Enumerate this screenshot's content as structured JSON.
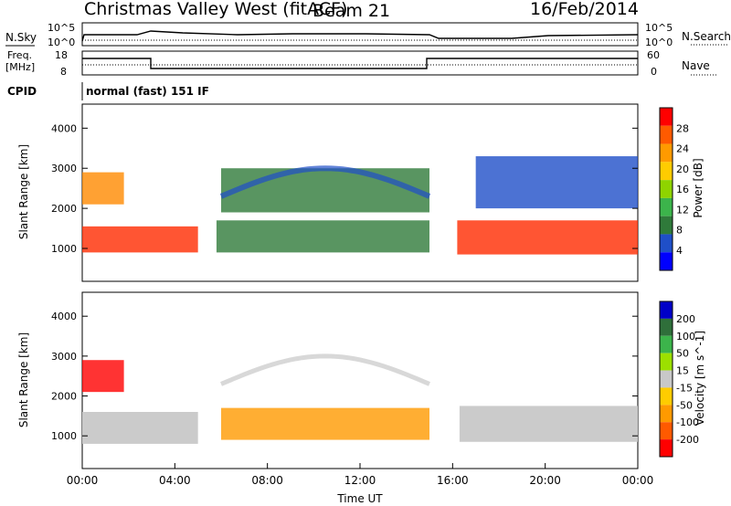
{
  "header": {
    "title": "Christmas Valley West (fitACF)",
    "beam": "Beam 21",
    "date": "16/Feb/2014"
  },
  "noise_panel": {
    "left_label": "N.Sky",
    "right_label": "N.Search",
    "left_ticks": [
      "10^5",
      "10^0"
    ],
    "right_ticks": [
      "10^5",
      "10^0"
    ]
  },
  "freq_panel": {
    "left_label_1": "Freq.",
    "left_label_2": "[MHz]",
    "right_label": "Nave",
    "left_ticks": [
      "18",
      "8"
    ],
    "right_ticks": [
      "60",
      "0"
    ]
  },
  "cpid": {
    "label": "CPID",
    "text": "normal (fast) 151 IF"
  },
  "chart_data": [
    {
      "type": "heatmap",
      "panel": "power",
      "ylabel": "Slant Range [km]",
      "y_ticks": [
        1000,
        2000,
        3000,
        4000
      ],
      "ylim": [
        180,
        4600
      ],
      "xlim": [
        0,
        24
      ],
      "colorbar_label": "Power [dB]",
      "colorbar_ticks": [
        "28",
        "24",
        "20",
        "16",
        "12",
        "8",
        "4"
      ],
      "colorbar_colors": [
        "#ff0000",
        "#ff5a00",
        "#ff9a00",
        "#ffcc00",
        "#8fd400",
        "#3cb44b",
        "#2f7a3a",
        "#1f4fc8",
        "#0000ff"
      ],
      "features": [
        {
          "name": "near band",
          "x": [
            0.0,
            5.0
          ],
          "y": [
            900,
            1550
          ],
          "level": 0.9
        },
        {
          "name": "near band late",
          "x": [
            16.2,
            24.0
          ],
          "y": [
            850,
            1700
          ],
          "level": 0.95
        },
        {
          "name": "early far",
          "x": [
            0.0,
            1.8
          ],
          "y": [
            2100,
            2900
          ],
          "level": 0.8
        },
        {
          "name": "arc",
          "x": [
            6.0,
            15.0
          ],
          "y": [
            1900,
            3000
          ],
          "level": 0.25
        },
        {
          "name": "mid region",
          "x": [
            5.8,
            15.0
          ],
          "y": [
            900,
            1700
          ],
          "level": 0.3
        },
        {
          "name": "late far",
          "x": [
            17.0,
            24.0
          ],
          "y": [
            2000,
            3300
          ],
          "level": 0.2
        }
      ]
    },
    {
      "type": "heatmap",
      "panel": "velocity",
      "ylabel": "Slant Range [km]",
      "y_ticks": [
        1000,
        2000,
        3000,
        4000
      ],
      "ylim": [
        180,
        4600
      ],
      "xlim": [
        0,
        24
      ],
      "x_ticks": [
        "00:00",
        "04:00",
        "08:00",
        "12:00",
        "16:00",
        "20:00",
        "00:00"
      ],
      "xlabel": "Time UT",
      "colorbar_label": "Velocity [m s^-1]",
      "colorbar_ticks": [
        "200",
        "100",
        "50",
        "15",
        "-15",
        "-50",
        "-100",
        "-200"
      ],
      "colorbar_colors": [
        "#0000c8",
        "#2f6f3a",
        "#3cb44b",
        "#9ce000",
        "#c8c8c8",
        "#ffcc00",
        "#ff9a00",
        "#ff5a00",
        "#ff0000"
      ],
      "features": [
        {
          "name": "ground scatter",
          "x": [
            0.0,
            5.0
          ],
          "y": [
            800,
            1600
          ],
          "level": 0.0
        },
        {
          "name": "ground scatter late",
          "x": [
            16.3,
            24.0
          ],
          "y": [
            850,
            1750
          ],
          "level": 0.0
        },
        {
          "name": "early far",
          "x": [
            0.0,
            1.8
          ],
          "y": [
            2100,
            2900
          ],
          "level": -180
        },
        {
          "name": "mid region",
          "x": [
            6.0,
            15.0
          ],
          "y": [
            900,
            1700
          ],
          "level": -60
        }
      ]
    }
  ]
}
